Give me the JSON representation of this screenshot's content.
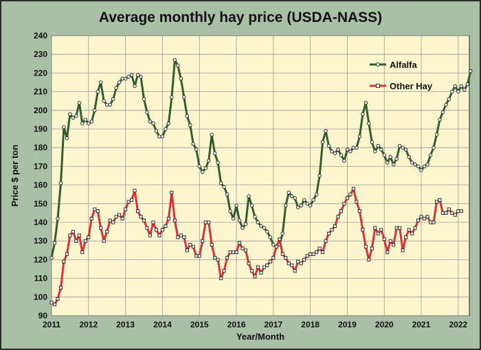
{
  "chart_data": {
    "type": "line",
    "title": "Average monthly hay price (USDA-NASS)",
    "xlabel": "Year/Month",
    "ylabel": "Price $ per ton",
    "ylim": [
      90,
      240
    ],
    "yticks": [
      90,
      100,
      110,
      120,
      130,
      140,
      150,
      160,
      170,
      180,
      190,
      200,
      210,
      220,
      230,
      240
    ],
    "xlim": [
      2011,
      2022.3
    ],
    "xticks": [
      "2011",
      "2012",
      "2013",
      "2014",
      "2015",
      "2016",
      "2017",
      "2018",
      "2019",
      "2020",
      "2021",
      "2022"
    ],
    "grid": true,
    "legend_placement": "top-right",
    "series": [
      {
        "name": "Alfalfa",
        "color": "#2e5e2e",
        "marker": "circle",
        "start": "2011-01",
        "values": [
          121,
          129,
          142,
          161,
          191,
          185,
          198,
          196,
          197,
          204,
          193,
          195,
          193,
          194,
          200,
          210,
          215,
          205,
          203,
          203,
          206,
          212,
          215,
          217,
          217,
          218,
          219,
          213,
          219,
          218,
          206,
          199,
          194,
          193,
          189,
          186,
          186,
          190,
          193,
          207,
          227,
          224,
          217,
          207,
          197,
          192,
          182,
          179,
          170,
          167,
          169,
          173,
          187,
          177,
          172,
          161,
          159,
          155,
          146,
          142,
          149,
          141,
          137,
          139,
          154,
          149,
          143,
          140,
          138,
          137,
          135,
          132,
          128,
          127,
          128,
          134,
          149,
          156,
          154,
          153,
          148,
          149,
          152,
          150,
          149,
          152,
          155,
          165,
          183,
          189,
          181,
          178,
          177,
          179,
          176,
          173,
          179,
          178,
          180,
          180,
          186,
          198,
          204,
          193,
          183,
          178,
          181,
          179,
          176,
          172,
          175,
          171,
          174,
          181,
          180,
          179,
          175,
          172,
          171,
          170,
          168,
          170,
          171,
          176,
          180,
          187,
          195,
          199,
          203,
          206,
          210,
          213,
          210,
          213,
          211,
          214,
          221
        ]
      },
      {
        "name": "Other Hay",
        "color": "#d8313a",
        "marker": "square",
        "start": "2011-01",
        "values": [
          97,
          96,
          99,
          105,
          119,
          123,
          133,
          135,
          130,
          133,
          124,
          130,
          132,
          142,
          147,
          146,
          137,
          130,
          135,
          141,
          140,
          143,
          144,
          142,
          147,
          151,
          152,
          157,
          146,
          143,
          141,
          137,
          133,
          140,
          136,
          133,
          136,
          138,
          142,
          156,
          141,
          132,
          133,
          132,
          125,
          128,
          127,
          122,
          122,
          130,
          140,
          140,
          128,
          121,
          120,
          110,
          114,
          121,
          124,
          124,
          124,
          129,
          126,
          125,
          118,
          114,
          111,
          116,
          113,
          116,
          117,
          119,
          121,
          127,
          131,
          123,
          121,
          118,
          117,
          114,
          119,
          118,
          120,
          122,
          123,
          123,
          124,
          126,
          124,
          130,
          134,
          136,
          138,
          143,
          146,
          150,
          153,
          155,
          158,
          151,
          146,
          136,
          127,
          120,
          126,
          137,
          134,
          136,
          131,
          124,
          130,
          128,
          137,
          137,
          125,
          132,
          136,
          134,
          137,
          141,
          143,
          142,
          143,
          140,
          140,
          151,
          152,
          145,
          145,
          147,
          145,
          144,
          146,
          146
        ]
      }
    ]
  }
}
